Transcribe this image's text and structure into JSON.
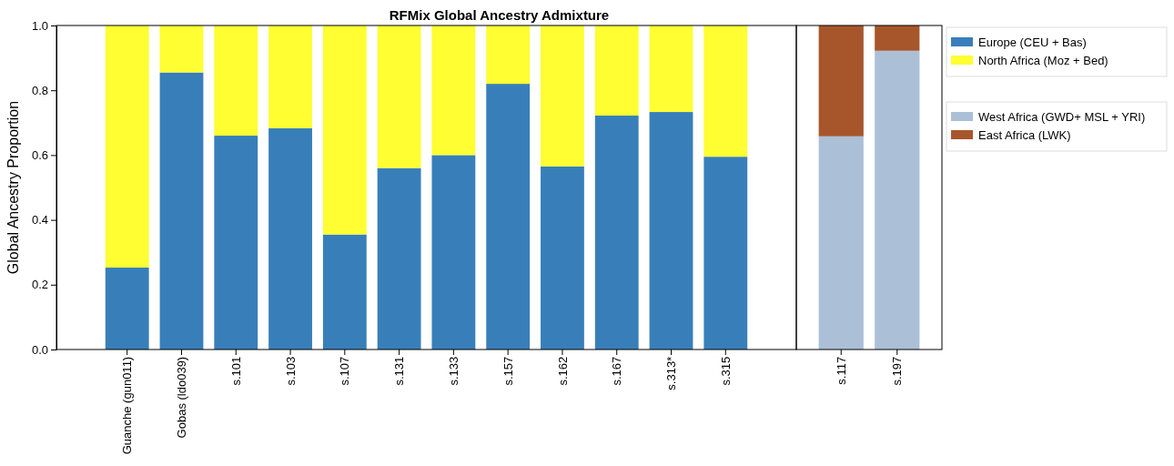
{
  "chart_data": [
    {
      "type": "bar",
      "title": "RFMix Global Ancestry Admixture",
      "ylabel": "Global Ancestry Proportion",
      "categories": [
        "Guanche (gun011)",
        "Gobas (ldo039)",
        "s.101",
        "s.103",
        "s.107",
        "s.131",
        "s.133",
        "s.157",
        "s.162",
        "s.167",
        "s.313*",
        "s.315"
      ],
      "stacked": true,
      "series": [
        {
          "name": "Europe (CEU + Bas)",
          "color": "#387fba",
          "values": [
            0.253,
            0.855,
            0.66,
            0.683,
            0.355,
            0.56,
            0.6,
            0.82,
            0.565,
            0.722,
            0.733,
            0.595
          ]
        },
        {
          "name": "North Africa (Moz + Bed)",
          "color": "#fefe33",
          "values": [
            0.747,
            0.145,
            0.34,
            0.317,
            0.645,
            0.44,
            0.4,
            0.18,
            0.435,
            0.278,
            0.267,
            0.405
          ]
        }
      ],
      "ylim": [
        0,
        1
      ],
      "yticks": [
        {
          "value": 0,
          "label": "0.0"
        },
        0.2,
        0.4,
        0.6,
        0.8,
        {
          "value": 1,
          "label": "1.0"
        }
      ],
      "legend": "top right"
    },
    {
      "type": "bar",
      "categories": [
        "s.117",
        "s.197"
      ],
      "stacked": true,
      "series": [
        {
          "name": "West Africa (GWD+ MSL + YRI)",
          "color": "#abc0d7",
          "values": [
            0.658,
            0.922
          ]
        },
        {
          "name": "East Africa (LWK)",
          "color": "#a7562b",
          "values": [
            0.342,
            0.078
          ]
        }
      ],
      "ylim": [
        0,
        1
      ],
      "tick_labels": "x",
      "legend": "right"
    }
  ]
}
